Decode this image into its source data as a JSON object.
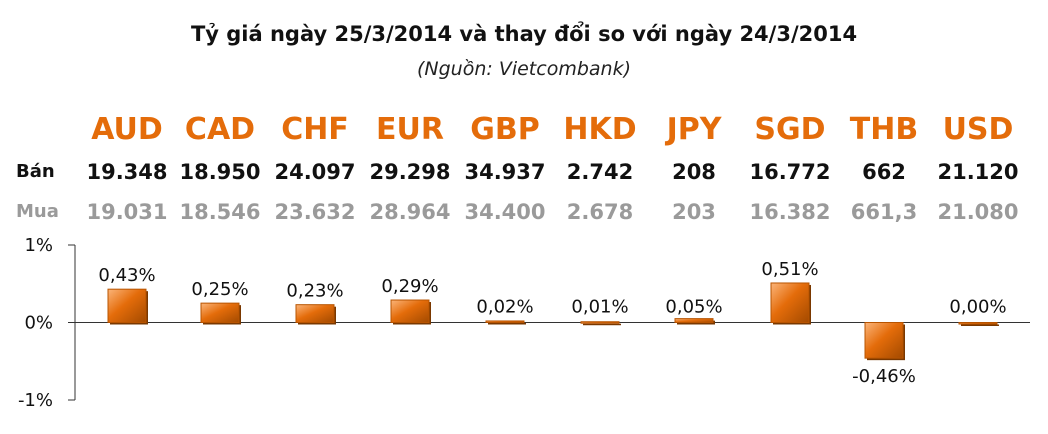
{
  "header": {
    "title": "Tỷ giá ngày 25/3/2014 và thay đổi so với ngày 24/3/2014",
    "source": "(Nguồn: Vietcombank)"
  },
  "table": {
    "row_labels": {
      "ban": "Bán",
      "mua": "Mua"
    },
    "columns": [
      {
        "code": "AUD",
        "ban": "19.348",
        "mua": "19.031"
      },
      {
        "code": "CAD",
        "ban": "18.950",
        "mua": "18.546"
      },
      {
        "code": "CHF",
        "ban": "24.097",
        "mua": "23.632"
      },
      {
        "code": "EUR",
        "ban": "29.298",
        "mua": "28.964"
      },
      {
        "code": "GBP",
        "ban": "34.937",
        "mua": "34.400"
      },
      {
        "code": "HKD",
        "ban": "2.742",
        "mua": "2.678"
      },
      {
        "code": "JPY",
        "ban": "208",
        "mua": "203"
      },
      {
        "code": "SGD",
        "ban": "16.772",
        "mua": "16.382"
      },
      {
        "code": "THB",
        "ban": "662",
        "mua": "661,3"
      },
      {
        "code": "USD",
        "ban": "21.120",
        "mua": "21.080"
      }
    ]
  },
  "colors": {
    "accent": "#e46c0a",
    "bar_light": "#f79646",
    "bar_dark": "#b85400",
    "mua_text": "#9a9a9a"
  },
  "chart_data": {
    "type": "bar",
    "categories": [
      "AUD",
      "CAD",
      "CHF",
      "EUR",
      "GBP",
      "HKD",
      "JPY",
      "SGD",
      "THB",
      "USD"
    ],
    "values": [
      0.43,
      0.25,
      0.23,
      0.29,
      0.02,
      0.01,
      0.05,
      0.51,
      -0.46,
      0.0
    ],
    "data_labels": [
      "0,43%",
      "0,25%",
      "0,23%",
      "0,29%",
      "0,02%",
      "0,01%",
      "0,05%",
      "0,51%",
      "-0,46%",
      "0,00%"
    ],
    "ylim": [
      -1,
      1
    ],
    "y_ticks": [
      1,
      0,
      -1
    ],
    "y_tick_labels": [
      "1%",
      "0%",
      "-1%"
    ],
    "grid": false,
    "legend": "none"
  }
}
